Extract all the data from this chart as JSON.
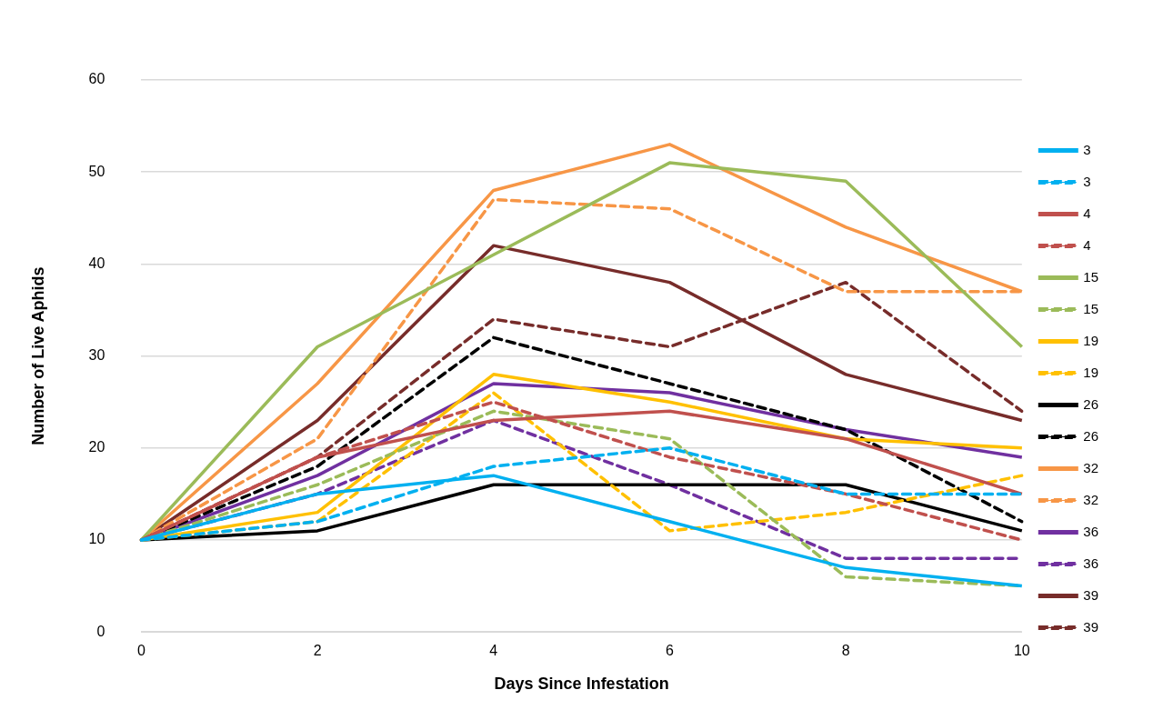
{
  "chart_data": {
    "type": "line",
    "xlabel": "Days Since Infestation",
    "ylabel": "Number of Live Aphids",
    "categories": [
      "0",
      "2",
      "4",
      "6",
      "8",
      "10"
    ],
    "ylim": [
      0,
      60
    ],
    "yticks": [
      0,
      10,
      20,
      30,
      40,
      50,
      60
    ],
    "grid": "y",
    "legend": "right",
    "marker": "none",
    "series": [
      {
        "name": "3",
        "color": "#00b0f0",
        "line_style": "solid",
        "values": [
          10,
          15,
          17,
          12,
          7,
          5
        ]
      },
      {
        "name": "3",
        "color": "#00b0f0",
        "line_style": "dashed",
        "values": [
          10,
          12,
          18,
          20,
          15,
          15
        ]
      },
      {
        "name": "4",
        "color": "#c0504d",
        "line_style": "solid",
        "values": [
          10,
          19,
          23,
          24,
          21,
          15
        ]
      },
      {
        "name": "4",
        "color": "#c0504d",
        "line_style": "dashed",
        "values": [
          10,
          19,
          25,
          19,
          15,
          10
        ]
      },
      {
        "name": "15",
        "color": "#9bbb59",
        "line_style": "solid",
        "values": [
          10,
          31,
          41,
          51,
          49,
          31
        ]
      },
      {
        "name": "15",
        "color": "#9bbb59",
        "line_style": "dashed",
        "values": [
          10,
          16,
          24,
          21,
          6,
          5
        ]
      },
      {
        "name": "19",
        "color": "#ffc000",
        "line_style": "solid",
        "values": [
          10,
          13,
          28,
          25,
          21,
          20
        ]
      },
      {
        "name": "19",
        "color": "#ffc000",
        "line_style": "dashed",
        "values": [
          10,
          12,
          26,
          11,
          13,
          17
        ]
      },
      {
        "name": "26",
        "color": "#000000",
        "line_style": "solid",
        "values": [
          10,
          11,
          16,
          16,
          16,
          11
        ]
      },
      {
        "name": "26",
        "color": "#000000",
        "line_style": "dashed",
        "values": [
          10,
          18,
          32,
          27,
          22,
          12
        ]
      },
      {
        "name": "32",
        "color": "#f79646",
        "line_style": "solid",
        "values": [
          10,
          27,
          48,
          53,
          44,
          37
        ]
      },
      {
        "name": "32",
        "color": "#f79646",
        "line_style": "dashed",
        "values": [
          10,
          21,
          47,
          46,
          37,
          37
        ]
      },
      {
        "name": "36",
        "color": "#7030a0",
        "line_style": "solid",
        "values": [
          10,
          17,
          27,
          26,
          22,
          19
        ]
      },
      {
        "name": "36",
        "color": "#7030a0",
        "line_style": "dashed",
        "values": [
          10,
          15,
          23,
          16,
          8,
          8
        ]
      },
      {
        "name": "39",
        "color": "#772c2a",
        "line_style": "solid",
        "values": [
          10,
          23,
          42,
          38,
          28,
          23
        ]
      },
      {
        "name": "39",
        "color": "#772c2a",
        "line_style": "dashed",
        "values": [
          10,
          19,
          34,
          31,
          38,
          24
        ]
      }
    ]
  }
}
